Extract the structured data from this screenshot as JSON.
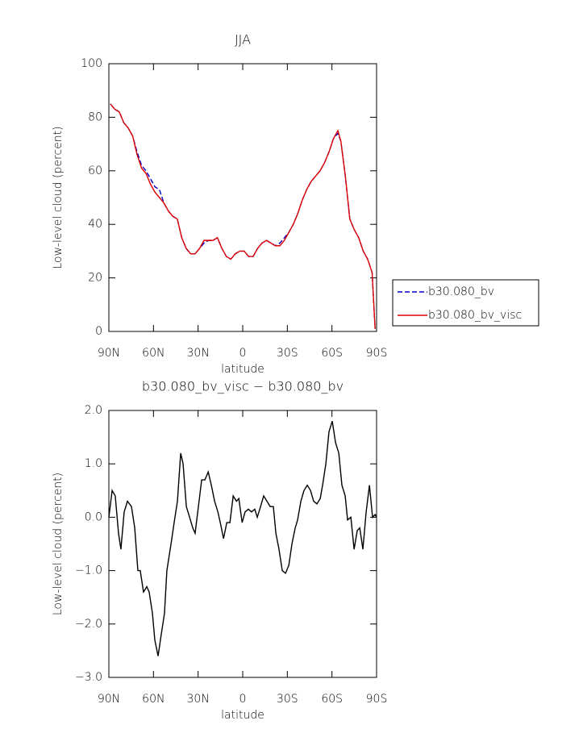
{
  "chart_data": [
    {
      "type": "line",
      "title": "JJA",
      "xlabel": "latitude",
      "ylabel": "Low-level cloud (percent)",
      "xlim": [
        90,
        -90
      ],
      "xticks": [
        {
          "value": 90,
          "label": "90N"
        },
        {
          "value": 60,
          "label": "60N"
        },
        {
          "value": 30,
          "label": "30N"
        },
        0,
        {
          "value": -30,
          "label": "30S"
        },
        {
          "value": -60,
          "label": "60S"
        },
        {
          "value": -90,
          "label": "90S"
        }
      ],
      "ylim": [
        0,
        100
      ],
      "yticks": [
        0,
        20,
        40,
        60,
        80,
        100
      ],
      "legend": "outside-right",
      "x": [
        89,
        86,
        83,
        80,
        77,
        74,
        71,
        68,
        65,
        62,
        59,
        56,
        53,
        50,
        47,
        44,
        41,
        38,
        35,
        32,
        29,
        26,
        23,
        20,
        17,
        14,
        11,
        8,
        5,
        2,
        -1,
        -4,
        -7,
        -10,
        -13,
        -16,
        -19,
        -22,
        -25,
        -28,
        -31,
        -34,
        -37,
        -40,
        -43,
        -46,
        -49,
        -52,
        -55,
        -58,
        -61,
        -64,
        -66,
        -69,
        -72,
        -75,
        -78,
        -81,
        -84,
        -87,
        -89
      ],
      "series": [
        {
          "name": "b30.080_bv",
          "color": "#0000cc",
          "style": "dashed",
          "values": [
            85,
            83,
            82,
            78,
            76,
            73,
            67,
            62,
            60,
            57,
            54,
            53,
            48,
            45,
            43,
            42,
            35,
            31,
            29,
            29,
            31,
            33,
            34,
            34,
            35,
            31,
            28,
            27,
            29,
            30,
            30,
            28,
            28,
            31,
            33,
            34,
            33,
            32,
            33,
            35,
            37,
            40,
            44,
            49,
            53,
            56,
            58,
            60,
            63,
            67,
            72,
            74,
            71,
            58,
            42,
            38,
            35,
            30,
            27,
            22,
            1
          ]
        },
        {
          "name": "b30.080_bv_visc",
          "color": "#dd0000",
          "style": "solid",
          "values": [
            85,
            83,
            82,
            78,
            76,
            73,
            66,
            61,
            59,
            55,
            52,
            50,
            48,
            45,
            43,
            42,
            35,
            31,
            29,
            29,
            31,
            34,
            34,
            34,
            35,
            31,
            28,
            27,
            29,
            30,
            30,
            28,
            28,
            31,
            33,
            34,
            33,
            32,
            32,
            34,
            37,
            40,
            44,
            49,
            53,
            56,
            58,
            60,
            63,
            67,
            72,
            75,
            71,
            58,
            42,
            38,
            35,
            30,
            27,
            22,
            1
          ]
        }
      ]
    },
    {
      "type": "line",
      "title": "b30.080_bv_visc − b30.080_bv",
      "xlabel": "latitude",
      "ylabel": "Low-level cloud (percent)",
      "xlim": [
        90,
        -90
      ],
      "xticks": [
        {
          "value": 90,
          "label": "90N"
        },
        {
          "value": 60,
          "label": "60N"
        },
        {
          "value": 30,
          "label": "30N"
        },
        0,
        {
          "value": -30,
          "label": "30S"
        },
        {
          "value": -60,
          "label": "60S"
        },
        {
          "value": -90,
          "label": "90S"
        }
      ],
      "ylim": [
        -3,
        2
      ],
      "yticks": [
        {
          "value": -3,
          "label": "−3.0"
        },
        {
          "value": -2,
          "label": "−2.0"
        },
        {
          "value": -1,
          "label": "−1.0"
        },
        {
          "value": 0,
          "label": "0.0"
        },
        {
          "value": 1,
          "label": "1.0"
        },
        {
          "value": 2,
          "label": "2.0"
        }
      ],
      "x": [
        90,
        87.8,
        85.7,
        83.5,
        81.9,
        79.7,
        77.5,
        74.8,
        72.6,
        70.5,
        68.9,
        66.7,
        64.5,
        62.9,
        60.7,
        59.1,
        56.9,
        54.8,
        52.6,
        51,
        48.2,
        46.1,
        43.9,
        41.7,
        40.1,
        37.9,
        35.7,
        33.6,
        32,
        29.8,
        27.6,
        25.4,
        23.2,
        21.1,
        18.9,
        16.7,
        15.1,
        12.9,
        10.7,
        8.6,
        6.4,
        4.2,
        2.6,
        0.4,
        -1.6,
        -3.8,
        -5.9,
        -8.1,
        -9.8,
        -12,
        -14.1,
        -16.3,
        -18.5,
        -20.6,
        -22.3,
        -24.4,
        -26.6,
        -28.8,
        -31,
        -33.1,
        -35.3,
        -36.9,
        -39.1,
        -41.2,
        -43.4,
        -45.6,
        -47.7,
        -49.9,
        -52.1,
        -53.7,
        -55.9,
        -58,
        -60.2,
        -62.4,
        -64.6,
        -66.7,
        -68.9,
        -70.5,
        -72.7,
        -74.9,
        -77,
        -78.7,
        -80.8,
        -83,
        -85.2,
        -87.3,
        -89,
        -90
      ],
      "series": [
        {
          "color": "#000000",
          "style": "solid",
          "values": [
            0.0,
            0.5,
            0.4,
            -0.3,
            -0.6,
            0.1,
            0.3,
            0.2,
            -0.2,
            -1.0,
            -1.0,
            -1.4,
            -1.3,
            -1.4,
            -1.8,
            -2.3,
            -2.6,
            -2.2,
            -1.8,
            -1.0,
            -0.5,
            -0.1,
            0.3,
            1.2,
            1.0,
            0.2,
            0.0,
            -0.2,
            -0.3,
            0.2,
            0.7,
            0.7,
            0.85,
            0.6,
            0.3,
            0.1,
            -0.1,
            -0.4,
            -0.1,
            -0.1,
            0.4,
            0.3,
            0.35,
            -0.1,
            0.1,
            0.15,
            0.1,
            0.15,
            0.0,
            0.2,
            0.4,
            0.3,
            0.2,
            0.2,
            -0.3,
            -0.6,
            -1.0,
            -1.05,
            -0.9,
            -0.5,
            -0.2,
            -0.05,
            0.3,
            0.5,
            0.6,
            0.5,
            0.3,
            0.25,
            0.35,
            0.6,
            1.0,
            1.6,
            1.8,
            1.4,
            1.2,
            0.6,
            0.4,
            -0.05,
            0.0,
            -0.6,
            -0.25,
            -0.2,
            -0.6,
            0.1,
            0.6,
            0.0,
            0.05,
            0.0
          ]
        }
      ]
    }
  ]
}
